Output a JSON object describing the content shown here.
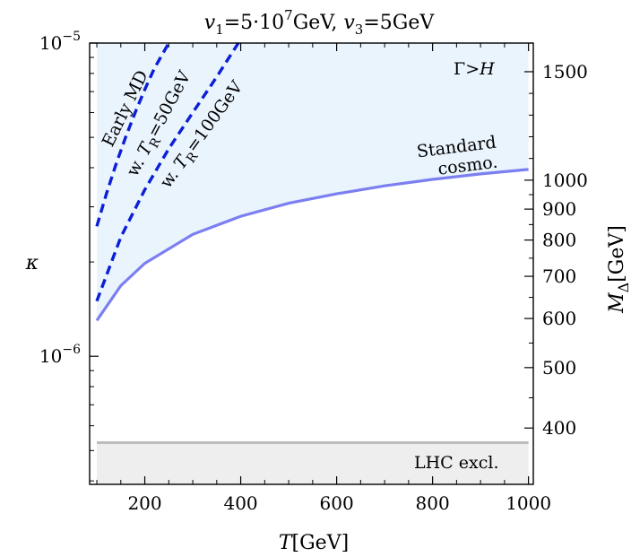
{
  "chart_data": {
    "type": "line",
    "title": "v1=5·10^7GeV, v3=5GeV",
    "title_parts": {
      "a": "v",
      "a_sub": "1",
      "b": "=5·10",
      "b_sup": "7",
      "c": "GeV, ",
      "d": "v",
      "d_sub": "3",
      "e": "=5GeV"
    },
    "xlabel": {
      "symbol": "T",
      "unit": "[GeV]"
    },
    "ylabel": "κ",
    "y2label": {
      "symbol": "M",
      "sub": "Δ",
      "unit": "[GeV]"
    },
    "xlim": [
      85,
      1010
    ],
    "ylim": [
      3.9e-07,
      1e-05
    ],
    "yscale": "log",
    "x_ticks": [
      200,
      400,
      600,
      800,
      1000
    ],
    "y_ticks": [
      {
        "value": 1e-05,
        "base": "10",
        "exp": "−5"
      },
      {
        "value": 1e-06,
        "base": "10",
        "exp": "−6"
      }
    ],
    "y2_ticks": [
      {
        "label": "1500",
        "kappa": 8.1e-06
      },
      {
        "label": "1000",
        "kappa": 3.65e-06
      },
      {
        "label": "900",
        "kappa": 2.95e-06
      },
      {
        "label": "800",
        "kappa": 2.35e-06
      },
      {
        "label": "700",
        "kappa": 1.8e-06
      },
      {
        "label": "600",
        "kappa": 1.32e-06
      },
      {
        "label": "500",
        "kappa": 9.2e-07
      },
      {
        "label": "400",
        "kappa": 5.9e-07
      }
    ],
    "series": [
      {
        "name": "Standard cosmo.",
        "style": "solid",
        "color": "#7b7ff0",
        "x": [
          100,
          150,
          200,
          300,
          400,
          500,
          600,
          700,
          800,
          900,
          1000
        ],
        "y": [
          1.3e-06,
          1.68e-06,
          1.98e-06,
          2.45e-06,
          2.8e-06,
          3.08e-06,
          3.3e-06,
          3.5e-06,
          3.67e-06,
          3.82e-06,
          3.95e-06
        ]
      },
      {
        "name": "Early MD w. T_R=50GeV",
        "style": "dashed",
        "color": "#0b1fd6",
        "x": [
          100,
          120,
          140,
          160,
          180,
          200,
          220,
          250
        ],
        "y": [
          2.6e-06,
          3.3e-06,
          4.1e-06,
          5e-06,
          6e-06,
          7.1e-06,
          8.3e-06,
          1e-05
        ]
      },
      {
        "name": "Early MD w. T_R=100GeV",
        "style": "dashed",
        "color": "#0b1fd6",
        "x": [
          100,
          150,
          200,
          250,
          300,
          350,
          395
        ],
        "y": [
          1.5e-06,
          2.4e-06,
          3.4e-06,
          4.6e-06,
          6e-06,
          7.8e-06,
          1e-05
        ]
      }
    ],
    "regions": [
      {
        "name": "Γ>H",
        "color": "#eaf4fd",
        "y_min": "standard-cosmo",
        "y_max": 1e-05
      },
      {
        "name": "LHC excl.",
        "color": "#eeeeee",
        "y_min": 3.9e-07,
        "y_max": 5.3e-07,
        "edge_color": "#bdbdbd"
      }
    ],
    "annotations": {
      "gamma_h": {
        "symbol": "Γ",
        "rel": ">",
        "var": "H"
      },
      "standard_line1": "Standard",
      "standard_line2": "cosmo.",
      "early_md": "Early MD",
      "tr50": {
        "pre": "w. ",
        "sym": "T",
        "sub": "R",
        "post": "=50GeV"
      },
      "tr100": {
        "pre": "w. ",
        "sym": "T",
        "sub": "R",
        "post": "=100GeV"
      },
      "lhc": "LHC excl."
    }
  }
}
